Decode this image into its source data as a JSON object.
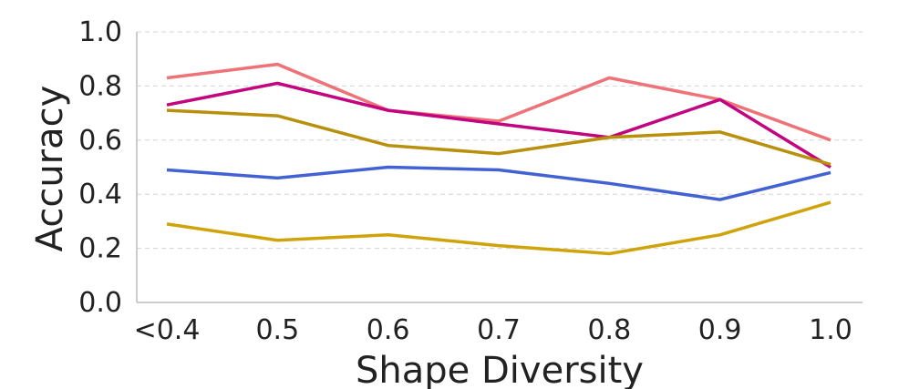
{
  "chart_data": {
    "type": "line",
    "title": "",
    "xlabel": "Shape Diversity",
    "ylabel": "Accuracy",
    "categories": [
      "<0.4",
      "0.5",
      "0.6",
      "0.7",
      "0.8",
      "0.9",
      "1.0"
    ],
    "ylim": [
      0,
      1
    ],
    "yticks": [
      "0.0",
      "0.2",
      "0.4",
      "0.6",
      "0.8",
      "1.0"
    ],
    "grid": "horizontal-dashed",
    "legend": "none",
    "series": [
      {
        "name": "series-1",
        "color": "#ee7379",
        "values": [
          0.83,
          0.88,
          0.71,
          0.67,
          0.83,
          0.75,
          0.6
        ]
      },
      {
        "name": "series-2",
        "color": "#c2057f",
        "values": [
          0.73,
          0.81,
          0.71,
          0.66,
          0.61,
          0.75,
          0.5
        ]
      },
      {
        "name": "series-3",
        "color": "#b8900c",
        "values": [
          0.71,
          0.69,
          0.58,
          0.55,
          0.61,
          0.63,
          0.51
        ]
      },
      {
        "name": "series-4",
        "color": "#4262d4",
        "values": [
          0.49,
          0.46,
          0.5,
          0.49,
          0.44,
          0.38,
          0.48
        ]
      },
      {
        "name": "series-5",
        "color": "#cfa30a",
        "values": [
          0.29,
          0.23,
          0.25,
          0.21,
          0.18,
          0.25,
          0.37
        ]
      }
    ]
  }
}
